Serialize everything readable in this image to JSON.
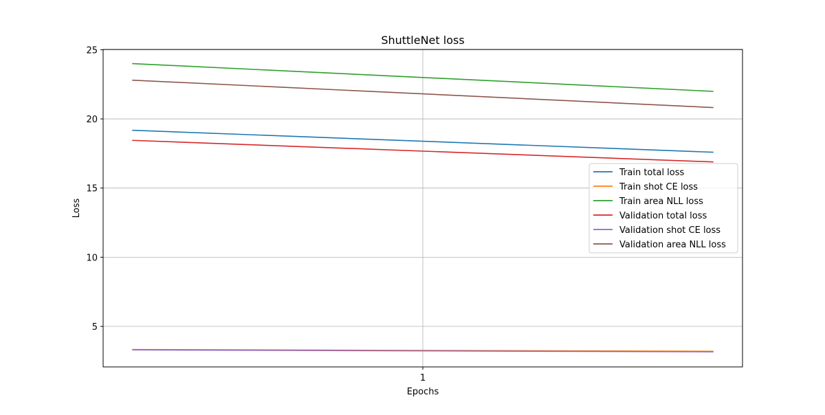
{
  "chart_data": {
    "type": "line",
    "title": "ShuttleNet loss",
    "xlabel": "Epochs",
    "ylabel": "Loss",
    "x": [
      0,
      2
    ],
    "xticks": [
      1
    ],
    "xtick_labels": [
      "1"
    ],
    "yticks": [
      5,
      10,
      15,
      20,
      25
    ],
    "ytick_labels": [
      "5",
      "10",
      "15",
      "20",
      "25"
    ],
    "xlim": [
      -0.1,
      2.1
    ],
    "ylim": [
      2.07,
      25.02
    ],
    "grid": true,
    "legend_position": "center-right",
    "series": [
      {
        "name": "Train total loss",
        "color": "#1f77b4",
        "values": [
          19.18,
          17.59
        ]
      },
      {
        "name": "Train shot CE loss",
        "color": "#ff7f0e",
        "values": [
          3.33,
          3.2
        ]
      },
      {
        "name": "Train area NLL loss",
        "color": "#2ca02c",
        "values": [
          24.0,
          21.99
        ]
      },
      {
        "name": "Validation total loss",
        "color": "#d62728",
        "values": [
          18.45,
          16.89
        ]
      },
      {
        "name": "Validation shot CE loss",
        "color": "#9467bd",
        "values": [
          3.3,
          3.16
        ]
      },
      {
        "name": "Validation area NLL loss",
        "color": "#8c564b",
        "values": [
          22.8,
          20.82
        ]
      }
    ]
  }
}
